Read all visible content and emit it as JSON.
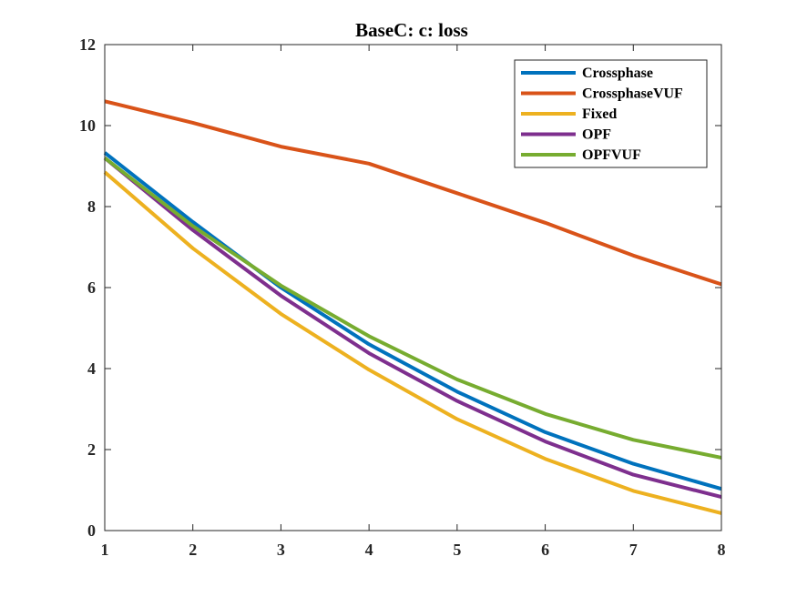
{
  "chart_data": {
    "type": "line",
    "title": "BaseC: c: loss",
    "xlabel": "",
    "ylabel": "",
    "xlim": [
      1,
      8
    ],
    "ylim": [
      0,
      12
    ],
    "xticks": [
      "1",
      "2",
      "3",
      "4",
      "5",
      "6",
      "7",
      "8"
    ],
    "yticks": [
      "0",
      "2",
      "4",
      "6",
      "8",
      "10",
      "12"
    ],
    "grid": false,
    "legend_position": "top-right",
    "x": [
      1,
      2,
      3,
      4,
      5,
      6,
      7,
      8
    ],
    "series": [
      {
        "name": "Crossphase",
        "color": "#0072BD",
        "values": [
          9.33,
          7.62,
          6.0,
          4.6,
          3.43,
          2.43,
          1.65,
          1.03
        ]
      },
      {
        "name": "CrossphaseVUF",
        "color": "#D95319",
        "values": [
          10.6,
          10.07,
          9.48,
          9.06,
          8.33,
          7.6,
          6.79,
          6.08
        ]
      },
      {
        "name": "Fixed",
        "color": "#EDB120",
        "values": [
          8.85,
          6.97,
          5.35,
          3.97,
          2.75,
          1.77,
          0.98,
          0.43
        ]
      },
      {
        "name": "OPF",
        "color": "#7E2F8E",
        "values": [
          9.2,
          7.42,
          5.8,
          4.38,
          3.2,
          2.2,
          1.38,
          0.83
        ]
      },
      {
        "name": "OPFVUF",
        "color": "#77AC30",
        "values": [
          9.2,
          7.52,
          6.05,
          4.8,
          3.73,
          2.88,
          2.24,
          1.8
        ]
      }
    ]
  }
}
